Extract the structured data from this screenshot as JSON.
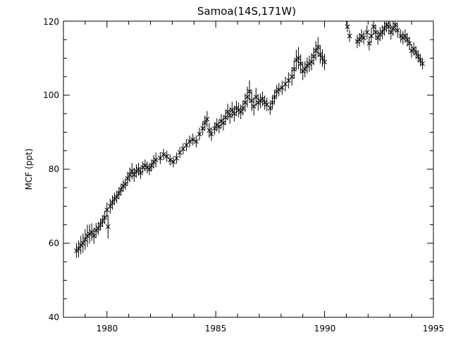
{
  "chart_data": {
    "type": "scatter",
    "title": "Samoa(14S,171W)",
    "xlabel": "",
    "ylabel": "MCF (ppt)",
    "xlim": [
      1978,
      1995
    ],
    "ylim": [
      40,
      120
    ],
    "x_ticks": [
      "1980",
      "1985",
      "1990",
      "1995"
    ],
    "y_ticks": [
      "40",
      "60",
      "80",
      "100",
      "120"
    ],
    "grid": false,
    "marker": "x",
    "error_bars": true,
    "series": [
      {
        "points": [
          [
            1978.6,
            58.0,
            2.0
          ],
          [
            1978.7,
            58.5,
            2.3
          ],
          [
            1978.8,
            59.5,
            2.5
          ],
          [
            1978.9,
            60.0,
            2.6
          ],
          [
            1979.0,
            61.0,
            2.8
          ],
          [
            1979.1,
            62.0,
            3.0
          ],
          [
            1979.2,
            62.5,
            2.6
          ],
          [
            1979.3,
            63.0,
            2.4
          ],
          [
            1979.4,
            62.0,
            2.2
          ],
          [
            1979.5,
            63.5,
            2.0
          ],
          [
            1979.6,
            64.0,
            1.8
          ],
          [
            1979.7,
            65.0,
            1.6
          ],
          [
            1979.8,
            66.0,
            1.6
          ],
          [
            1979.9,
            67.0,
            1.8
          ],
          [
            1980.0,
            69.0,
            2.0
          ],
          [
            1980.05,
            64.5,
            3.2
          ],
          [
            1980.15,
            70.0,
            2.0
          ],
          [
            1980.25,
            71.0,
            1.9
          ],
          [
            1980.35,
            72.0,
            1.7
          ],
          [
            1980.45,
            72.5,
            1.7
          ],
          [
            1980.55,
            73.5,
            1.6
          ],
          [
            1980.65,
            74.5,
            1.6
          ],
          [
            1980.75,
            75.5,
            1.6
          ],
          [
            1980.85,
            76.0,
            1.6
          ],
          [
            1980.95,
            77.5,
            1.8
          ],
          [
            1981.05,
            78.5,
            2.0
          ],
          [
            1981.15,
            79.5,
            2.2
          ],
          [
            1981.25,
            78.5,
            1.9
          ],
          [
            1981.35,
            79.5,
            1.8
          ],
          [
            1981.45,
            80.0,
            1.7
          ],
          [
            1981.55,
            79.0,
            1.6
          ],
          [
            1981.65,
            80.5,
            1.6
          ],
          [
            1981.75,
            81.0,
            1.6
          ],
          [
            1981.85,
            80.5,
            1.6
          ],
          [
            1981.95,
            80.0,
            1.6
          ],
          [
            1982.05,
            81.0,
            1.6
          ],
          [
            1982.15,
            82.0,
            1.8
          ],
          [
            1982.25,
            82.5,
            2.0
          ],
          [
            1982.45,
            83.0,
            1.6
          ],
          [
            1982.6,
            84.0,
            1.5
          ],
          [
            1982.75,
            83.5,
            1.5
          ],
          [
            1982.9,
            82.5,
            1.5
          ],
          [
            1983.05,
            82.0,
            1.5
          ],
          [
            1983.2,
            83.0,
            1.5
          ],
          [
            1983.35,
            84.5,
            1.5
          ],
          [
            1983.5,
            85.5,
            1.5
          ],
          [
            1983.65,
            86.5,
            1.6
          ],
          [
            1983.8,
            87.5,
            1.6
          ],
          [
            1983.95,
            88.0,
            1.6
          ],
          [
            1984.1,
            87.5,
            1.6
          ],
          [
            1984.25,
            89.5,
            1.7
          ],
          [
            1984.4,
            91.0,
            1.8
          ],
          [
            1984.5,
            92.5,
            2.0
          ],
          [
            1984.6,
            93.5,
            2.2
          ],
          [
            1984.7,
            90.5,
            2.0
          ],
          [
            1984.8,
            89.5,
            1.8
          ],
          [
            1984.95,
            91.0,
            1.7
          ],
          [
            1985.05,
            92.0,
            1.8
          ],
          [
            1985.15,
            91.5,
            1.8
          ],
          [
            1985.25,
            93.0,
            1.9
          ],
          [
            1985.35,
            92.5,
            2.0
          ],
          [
            1985.45,
            94.0,
            2.0
          ],
          [
            1985.55,
            95.5,
            2.2
          ],
          [
            1985.65,
            94.5,
            2.2
          ],
          [
            1985.75,
            96.0,
            2.2
          ],
          [
            1985.85,
            95.0,
            2.1
          ],
          [
            1985.95,
            96.5,
            2.0
          ],
          [
            1986.05,
            96.0,
            2.0
          ],
          [
            1986.15,
            95.5,
            2.0
          ],
          [
            1986.25,
            96.5,
            2.0
          ],
          [
            1986.35,
            98.0,
            2.5
          ],
          [
            1986.45,
            99.5,
            2.8
          ],
          [
            1986.55,
            101.0,
            3.0
          ],
          [
            1986.65,
            98.5,
            2.8
          ],
          [
            1986.75,
            97.0,
            2.5
          ],
          [
            1986.85,
            99.5,
            2.5
          ],
          [
            1986.95,
            98.0,
            2.2
          ],
          [
            1987.05,
            98.5,
            2.0
          ],
          [
            1987.15,
            99.0,
            2.0
          ],
          [
            1987.25,
            98.0,
            1.9
          ],
          [
            1987.35,
            97.5,
            1.8
          ],
          [
            1987.5,
            96.5,
            1.8
          ],
          [
            1987.6,
            98.0,
            1.8
          ],
          [
            1987.7,
            99.5,
            1.8
          ],
          [
            1987.8,
            101.0,
            1.8
          ],
          [
            1987.9,
            101.5,
            1.8
          ],
          [
            1988.05,
            102.0,
            1.9
          ],
          [
            1988.2,
            103.0,
            2.0
          ],
          [
            1988.35,
            104.0,
            2.2
          ],
          [
            1988.5,
            105.0,
            2.4
          ],
          [
            1988.6,
            107.0,
            2.6
          ],
          [
            1988.7,
            109.5,
            2.8
          ],
          [
            1988.8,
            110.0,
            3.0
          ],
          [
            1988.9,
            108.5,
            2.6
          ],
          [
            1989.0,
            106.5,
            2.4
          ],
          [
            1989.1,
            107.0,
            2.2
          ],
          [
            1989.2,
            108.0,
            2.2
          ],
          [
            1989.3,
            108.5,
            2.2
          ],
          [
            1989.4,
            109.0,
            2.3
          ],
          [
            1989.5,
            110.5,
            2.4
          ],
          [
            1989.6,
            112.0,
            2.6
          ],
          [
            1989.7,
            113.0,
            2.7
          ],
          [
            1989.8,
            111.0,
            2.5
          ],
          [
            1989.9,
            110.0,
            2.4
          ],
          [
            1990.0,
            109.0,
            2.2
          ],
          [
            1991.05,
            118.5,
            1.5
          ],
          [
            1991.15,
            116.0,
            1.6
          ],
          [
            1991.5,
            114.5,
            1.8
          ],
          [
            1991.6,
            115.0,
            1.8
          ],
          [
            1991.7,
            116.0,
            1.8
          ],
          [
            1991.8,
            115.5,
            1.8
          ],
          [
            1991.95,
            117.0,
            1.9
          ],
          [
            1992.05,
            114.0,
            1.9
          ],
          [
            1992.15,
            116.0,
            2.0
          ],
          [
            1992.25,
            118.5,
            2.0
          ],
          [
            1992.35,
            117.0,
            2.0
          ],
          [
            1992.45,
            115.5,
            1.9
          ],
          [
            1992.55,
            116.5,
            1.9
          ],
          [
            1992.65,
            117.0,
            1.9
          ],
          [
            1992.75,
            118.0,
            1.9
          ],
          [
            1992.85,
            119.0,
            2.0
          ],
          [
            1992.95,
            118.5,
            2.0
          ],
          [
            1993.05,
            117.0,
            2.0
          ],
          [
            1993.15,
            118.0,
            2.0
          ],
          [
            1993.25,
            119.0,
            2.0
          ],
          [
            1993.35,
            117.5,
            1.9
          ],
          [
            1993.5,
            116.0,
            1.8
          ],
          [
            1993.6,
            115.5,
            1.8
          ],
          [
            1993.7,
            116.0,
            1.8
          ],
          [
            1993.8,
            115.0,
            1.8
          ],
          [
            1993.9,
            114.0,
            1.8
          ],
          [
            1994.0,
            112.0,
            1.8
          ],
          [
            1994.1,
            112.5,
            1.8
          ],
          [
            1994.2,
            111.5,
            1.7
          ],
          [
            1994.3,
            110.5,
            1.6
          ],
          [
            1994.4,
            109.5,
            1.6
          ],
          [
            1994.5,
            108.5,
            1.5
          ]
        ]
      }
    ]
  }
}
